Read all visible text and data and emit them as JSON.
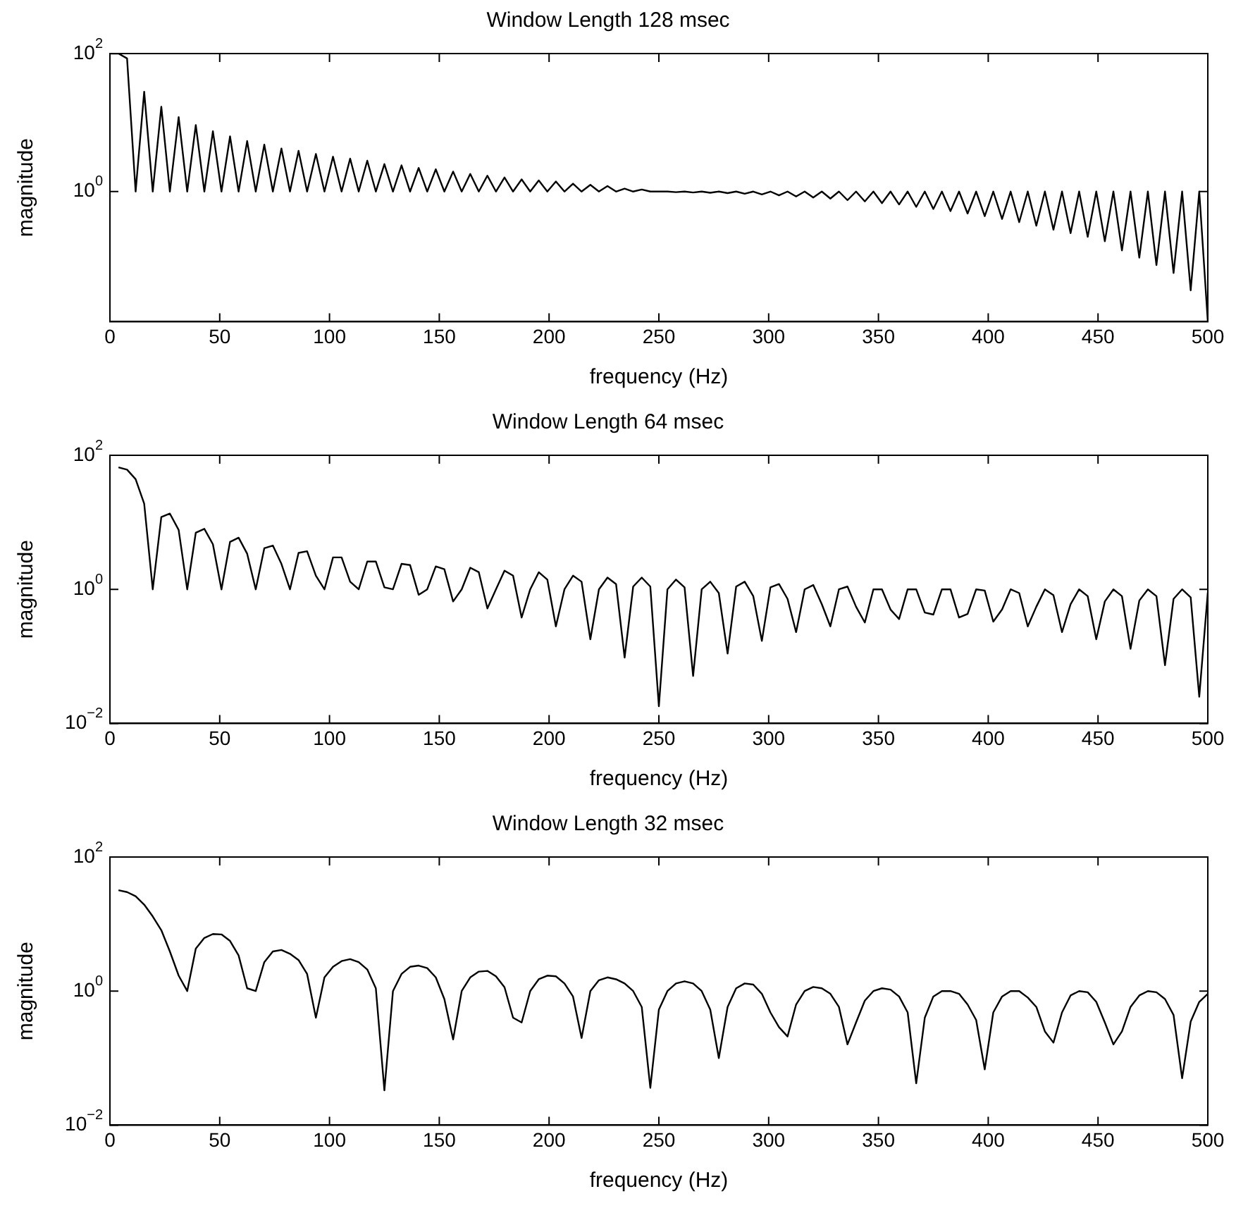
{
  "chart_data": [
    {
      "type": "line",
      "title": "Window Length 128 msec",
      "xlabel": "frequency (Hz)",
      "ylabel": "magnitude",
      "log": "y",
      "color": "#000000",
      "xlim": [
        0,
        500
      ],
      "xticks": [
        0,
        50,
        100,
        150,
        200,
        250,
        300,
        350,
        400,
        450,
        500
      ],
      "ylim": [
        0.013,
        100
      ],
      "yticks": [
        {
          "value": 1,
          "label": "10$^{0}$"
        },
        {
          "value": 100,
          "label": "10$^{2}$"
        }
      ],
      "x": [
        0,
        3.9,
        7.8,
        11.7,
        15.6,
        19.5,
        23.4,
        27.3,
        31.3,
        35.2,
        39.1,
        43,
        46.9,
        50.8,
        54.7,
        58.6,
        62.5,
        66.4,
        70.3,
        74.2,
        78.1,
        82,
        85.9,
        89.8,
        93.8,
        97.7,
        101.6,
        105.5,
        109.4,
        113.3,
        117.2,
        121.1,
        125,
        128.9,
        132.8,
        136.7,
        140.6,
        144.5,
        148.4,
        152.3,
        156.3,
        160.2,
        164.1,
        168,
        171.9,
        175.8,
        179.7,
        183.6,
        187.5,
        191.4,
        195.3,
        199.2,
        203.1,
        207,
        210.9,
        214.8,
        218.8,
        222.7,
        226.6,
        230.5,
        234.4,
        238.3,
        242.2,
        246.1,
        250,
        253.9,
        257.8,
        261.7,
        265.6,
        269.5,
        273.4,
        277.3,
        281.3,
        285.2,
        289.1,
        293,
        296.9,
        300.8,
        304.7,
        308.6,
        312.5,
        316.4,
        320.3,
        324.2,
        328.1,
        332,
        335.9,
        339.8,
        343.8,
        347.7,
        351.6,
        355.5,
        359.4,
        363.3,
        367.2,
        371.1,
        375,
        378.9,
        382.8,
        386.7,
        390.6,
        394.5,
        398.4,
        402.3,
        406.3,
        410.2,
        414.1,
        418,
        421.9,
        425.8,
        429.7,
        433.6,
        437.5,
        441.4,
        445.3,
        449.2,
        453.1,
        457,
        460.9,
        464.8,
        468.8,
        472.7,
        476.6,
        480.5,
        484.4,
        488.3,
        492.2,
        496.1,
        500
      ],
      "values": [
        100,
        100,
        85,
        1,
        28,
        1,
        17,
        1,
        12,
        1,
        9.2,
        1,
        7.5,
        1,
        6.3,
        1,
        5.4,
        1,
        4.8,
        1,
        4.2,
        1,
        3.9,
        1,
        3.5,
        1,
        3.2,
        1,
        3,
        1,
        2.8,
        1,
        2.5,
        1,
        2.4,
        1,
        2.2,
        1,
        2.1,
        1,
        1.95,
        1,
        1.8,
        1,
        1.7,
        1,
        1.6,
        1,
        1.5,
        1,
        1.45,
        1,
        1.4,
        1,
        1.3,
        1,
        1.25,
        1,
        1.2,
        1,
        1.1,
        1,
        1.07,
        1,
        1,
        1,
        0.98,
        1,
        0.97,
        1,
        0.96,
        1,
        0.95,
        1,
        0.93,
        1,
        0.91,
        1,
        0.88,
        1,
        0.85,
        1,
        0.82,
        1,
        0.79,
        1,
        0.75,
        1,
        0.72,
        1,
        0.68,
        1,
        0.65,
        1,
        0.6,
        1,
        0.56,
        1,
        0.52,
        1,
        0.48,
        1,
        0.44,
        1,
        0.4,
        1,
        0.36,
        1,
        0.32,
        1,
        0.28,
        1,
        0.25,
        1,
        0.22,
        1,
        0.19,
        1,
        0.14,
        1,
        0.11,
        1,
        0.086,
        1,
        0.066,
        1,
        0.037,
        1,
        0.013
      ]
    },
    {
      "type": "line",
      "title": "Window Length 64 msec",
      "xlabel": "frequency (Hz)",
      "ylabel": "magnitude",
      "log": "y",
      "color": "#000000",
      "xlim": [
        0,
        500
      ],
      "xticks": [
        0,
        50,
        100,
        150,
        200,
        250,
        300,
        350,
        400,
        450,
        500
      ],
      "ylim": [
        0.01,
        100
      ],
      "yticks": [
        {
          "value": 0.01,
          "label": "10$^{−2}$"
        },
        {
          "value": 1,
          "label": "10$^{0}$"
        },
        {
          "value": 100,
          "label": "10$^{2}$"
        }
      ],
      "x": [
        3.9,
        7.8,
        11.7,
        15.6,
        19.5,
        23.4,
        27.3,
        31.3,
        35.2,
        39.1,
        43,
        46.9,
        50.8,
        54.7,
        58.6,
        62.5,
        66.4,
        70.3,
        74.2,
        78.1,
        82,
        85.9,
        89.8,
        93.8,
        97.7,
        101.6,
        105.5,
        109.4,
        113.3,
        117.2,
        121.1,
        125,
        128.9,
        132.8,
        136.7,
        140.6,
        144.5,
        148.4,
        152.3,
        156.3,
        160.2,
        164.1,
        168,
        171.9,
        175.8,
        179.7,
        183.6,
        187.5,
        191.4,
        195.3,
        199.2,
        203.1,
        207,
        210.9,
        214.8,
        218.8,
        222.7,
        226.6,
        230.5,
        234.4,
        238.3,
        242.2,
        246.1,
        250,
        253.9,
        257.8,
        261.7,
        265.6,
        269.5,
        273.4,
        277.3,
        281.3,
        285.2,
        289.1,
        293,
        296.9,
        300.8,
        304.7,
        308.6,
        312.5,
        316.4,
        320.3,
        324.2,
        328.1,
        332,
        335.9,
        339.8,
        343.8,
        347.7,
        351.6,
        355.5,
        359.4,
        363.3,
        367.2,
        371.1,
        375,
        378.9,
        382.8,
        386.7,
        390.6,
        394.5,
        398.4,
        402.3,
        406.3,
        410.2,
        414.1,
        418,
        421.9,
        425.8,
        429.7,
        433.6,
        437.5,
        441.4,
        445.3,
        449.2,
        453.1,
        457,
        460.9,
        464.8,
        468.8,
        472.7,
        476.6,
        480.5,
        484.4,
        488.3,
        492.2,
        496.1,
        500
      ],
      "values": [
        66,
        61,
        44,
        19,
        1,
        12,
        13.5,
        7.7,
        1,
        7,
        8,
        4.7,
        1,
        5.1,
        5.9,
        3.4,
        1,
        4.1,
        4.5,
        2.4,
        1,
        3.5,
        3.7,
        1.6,
        1,
        3,
        3,
        1.3,
        1,
        2.6,
        2.6,
        1.07,
        1,
        2.4,
        2.3,
        0.83,
        1,
        2.2,
        2,
        0.66,
        1,
        2.1,
        1.8,
        0.52,
        1,
        1.9,
        1.6,
        0.38,
        1,
        1.8,
        1.4,
        0.28,
        1,
        1.6,
        1.3,
        0.18,
        1,
        1.5,
        1.2,
        0.096,
        1.1,
        1.5,
        1.1,
        0.018,
        1,
        1.4,
        1.07,
        0.051,
        1,
        1.3,
        0.88,
        0.11,
        1.1,
        1.3,
        0.79,
        0.17,
        1.07,
        1.2,
        0.72,
        0.23,
        1,
        1.16,
        0.6,
        0.28,
        1,
        1.1,
        0.55,
        0.32,
        1,
        1,
        0.5,
        0.36,
        1,
        1,
        0.45,
        0.42,
        1,
        1,
        0.38,
        0.43,
        1,
        0.96,
        0.33,
        0.5,
        1,
        0.88,
        0.28,
        0.55,
        1,
        0.82,
        0.23,
        0.6,
        1,
        0.79,
        0.18,
        0.66,
        1,
        0.79,
        0.13,
        0.68,
        1,
        0.79,
        0.074,
        0.72,
        1,
        0.76,
        0.025,
        0.9
      ]
    },
    {
      "type": "line",
      "title": "Window Length 32 msec",
      "xlabel": "frequency (Hz)",
      "ylabel": "magnitude",
      "log": "y",
      "color": "#000000",
      "xlim": [
        0,
        500
      ],
      "xticks": [
        0,
        50,
        100,
        150,
        200,
        250,
        300,
        350,
        400,
        450,
        500
      ],
      "ylim": [
        0.01,
        100
      ],
      "yticks": [
        {
          "value": 0.01,
          "label": "10$^{−2}$"
        },
        {
          "value": 1,
          "label": "10$^{0}$"
        },
        {
          "value": 100,
          "label": "10$^{2}$"
        }
      ],
      "x": [
        3.9,
        7.8,
        11.7,
        15.6,
        19.5,
        23.4,
        27.3,
        31.3,
        35.2,
        39.1,
        43,
        46.9,
        50.8,
        54.7,
        58.6,
        62.5,
        66.4,
        70.3,
        74.2,
        78.1,
        82,
        85.9,
        89.8,
        93.8,
        97.7,
        101.6,
        105.5,
        109.4,
        113.3,
        117.2,
        121.1,
        125,
        128.9,
        132.8,
        136.7,
        140.6,
        144.5,
        148.4,
        152.3,
        156.3,
        160.2,
        164.1,
        168,
        171.9,
        175.8,
        179.7,
        183.6,
        187.5,
        191.4,
        195.3,
        199.2,
        203.1,
        207,
        210.9,
        214.8,
        218.8,
        222.7,
        226.6,
        230.5,
        234.4,
        238.3,
        242.2,
        246.1,
        250,
        253.9,
        257.8,
        261.7,
        265.6,
        269.5,
        273.4,
        277.3,
        281.3,
        285.2,
        289.1,
        293,
        296.9,
        300.8,
        304.7,
        308.6,
        312.5,
        316.4,
        320.3,
        324.2,
        328.1,
        332,
        335.9,
        339.8,
        343.8,
        347.7,
        351.6,
        355.5,
        359.4,
        363.3,
        367.2,
        371.1,
        375,
        378.9,
        382.8,
        386.7,
        390.6,
        394.5,
        398.4,
        402.3,
        406.3,
        410.2,
        414.1,
        418,
        421.9,
        425.8,
        429.7,
        433.6,
        437.5,
        441.4,
        445.3,
        449.2,
        453.1,
        457,
        460.9,
        464.8,
        468.8,
        472.7,
        476.6,
        480.5,
        484.4,
        488.3,
        492.2,
        496.1,
        500
      ],
      "values": [
        32,
        30,
        26,
        19.5,
        13,
        8.1,
        3.9,
        1.7,
        1,
        4.3,
        6.2,
        7.1,
        7,
        5.6,
        3.4,
        1.1,
        1,
        2.7,
        3.9,
        4.1,
        3.6,
        2.9,
        1.8,
        0.4,
        1.6,
        2.3,
        2.8,
        3,
        2.7,
        2.1,
        1.1,
        0.033,
        1,
        1.8,
        2.3,
        2.4,
        2.2,
        1.6,
        0.76,
        0.19,
        1,
        1.6,
        1.95,
        2,
        1.66,
        1.14,
        0.4,
        0.34,
        1,
        1.5,
        1.7,
        1.66,
        1.3,
        0.83,
        0.2,
        1,
        1.45,
        1.6,
        1.5,
        1.3,
        1,
        0.58,
        0.036,
        0.53,
        1,
        1.3,
        1.4,
        1.3,
        1,
        0.53,
        0.1,
        0.58,
        1.1,
        1.3,
        1.25,
        0.91,
        0.48,
        0.29,
        0.21,
        0.63,
        1,
        1.15,
        1.1,
        0.91,
        0.58,
        0.16,
        0.34,
        0.72,
        1,
        1.1,
        1.05,
        0.83,
        0.48,
        0.042,
        0.4,
        0.83,
        1,
        1,
        0.91,
        0.63,
        0.37,
        0.068,
        0.48,
        0.83,
        1,
        1,
        0.8,
        0.58,
        0.25,
        0.17,
        0.48,
        0.86,
        1,
        0.96,
        0.69,
        0.34,
        0.16,
        0.25,
        0.58,
        0.86,
        1,
        0.96,
        0.76,
        0.44,
        0.05,
        0.35,
        0.69,
        0.91
      ]
    }
  ]
}
